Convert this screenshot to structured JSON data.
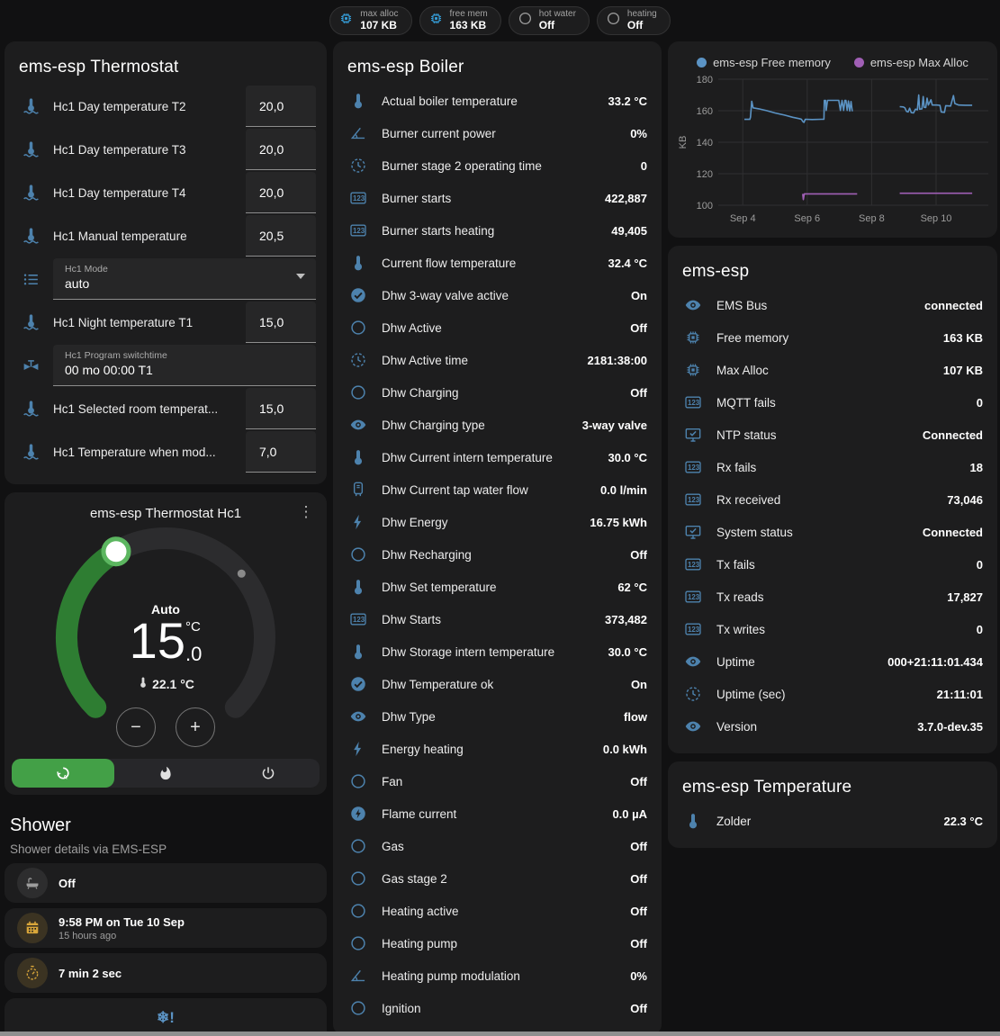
{
  "colors": {
    "accent_blue": "#4d82ad",
    "badge_blue": "#36a3e0",
    "amber": "#d9a63a",
    "gray_icon": "#9e9e9e",
    "green_active": "#43a047",
    "arc_green": "#2e7d32",
    "chart_blue": "#5b93c4",
    "chart_purple": "#a05fb5"
  },
  "topbar": {
    "badges": [
      {
        "label": "max alloc",
        "value": "107 KB",
        "icon": "chip",
        "icon_color": "#36a3e0"
      },
      {
        "label": "free mem",
        "value": "163 KB",
        "icon": "chip",
        "icon_color": "#36a3e0"
      },
      {
        "label": "hot water",
        "value": "Off",
        "icon": "circle",
        "icon_color": "#9e9e9e"
      },
      {
        "label": "heating",
        "value": "Off",
        "icon": "circle",
        "icon_color": "#9e9e9e"
      }
    ]
  },
  "thermostat_panel": {
    "title": "ems-esp Thermostat",
    "rows": [
      {
        "type": "number",
        "icon": "thermometer-water",
        "label": "Hc1 Day temperature T2",
        "value": "20,0"
      },
      {
        "type": "number",
        "icon": "thermometer-water",
        "label": "Hc1 Day temperature T3",
        "value": "20,0"
      },
      {
        "type": "number",
        "icon": "thermometer-water",
        "label": "Hc1 Day temperature T4",
        "value": "20,0"
      },
      {
        "type": "number",
        "icon": "thermometer-water",
        "label": "Hc1 Manual temperature",
        "value": "20,5"
      },
      {
        "type": "select",
        "icon": "list",
        "label": "Hc1 Mode",
        "value": "auto"
      },
      {
        "type": "number",
        "icon": "thermometer-water",
        "label": "Hc1 Night temperature T1",
        "value": "15,0"
      },
      {
        "type": "text",
        "icon": "valve",
        "label": "Hc1 Program switchtime",
        "value": "00 mo 00:00 T1"
      },
      {
        "type": "number",
        "icon": "thermometer-water",
        "label": "Hc1 Selected room temperat...",
        "value": "15,0"
      },
      {
        "type": "number",
        "icon": "thermometer-water",
        "label": "Hc1 Temperature when mod...",
        "value": "7,0"
      }
    ]
  },
  "dial_card": {
    "title": "ems-esp Thermostat Hc1",
    "mode_label": "Auto",
    "target_whole": "15",
    "target_decimal": ".0",
    "target_unit": "°C",
    "current_temperature": "22.1 °C",
    "minus_label": "−",
    "plus_label": "+",
    "menu_glyph": "⋮",
    "modes": [
      {
        "name": "auto",
        "icon": "thermostat-auto",
        "active": true
      },
      {
        "name": "heat",
        "icon": "fire",
        "active": false
      },
      {
        "name": "off",
        "icon": "power",
        "active": false
      }
    ]
  },
  "shower_section": {
    "title": "Shower",
    "subtitle": "Shower details via EMS-ESP",
    "items": [
      {
        "icon": "bathtub",
        "icon_color": "#9e9e9e",
        "circle_bg": "#2d2d2e",
        "primary": "Off",
        "secondary": ""
      },
      {
        "icon": "calendar",
        "icon_color": "#d9a63a",
        "circle_bg": "rgba(217,166,58,0.16)",
        "primary": "9:58 PM on Tue 10 Sep",
        "secondary": "15 hours ago"
      },
      {
        "icon": "timer",
        "icon_color": "#d9a63a",
        "circle_bg": "rgba(217,166,58,0.16)",
        "primary": "7 min 2 sec",
        "secondary": ""
      },
      {
        "icon": "snowflake-alert",
        "icon_color": "#5b93c4",
        "glyph": "❄!",
        "centered": true
      }
    ]
  },
  "boiler_panel": {
    "title": "ems-esp Boiler",
    "rows": [
      {
        "icon": "thermometer",
        "label": "Actual boiler temperature",
        "value": "33.2 °C"
      },
      {
        "icon": "angle",
        "label": "Burner current power",
        "value": "0%"
      },
      {
        "icon": "clock",
        "label": "Burner stage 2 operating time",
        "value": "0"
      },
      {
        "icon": "counter",
        "label": "Burner starts",
        "value": "422,887"
      },
      {
        "icon": "counter",
        "label": "Burner starts heating",
        "value": "49,405"
      },
      {
        "icon": "thermometer",
        "label": "Current flow temperature",
        "value": "32.4 °C"
      },
      {
        "icon": "check-circle",
        "label": "Dhw 3-way valve active",
        "value": "On"
      },
      {
        "icon": "circle",
        "label": "Dhw Active",
        "value": "Off"
      },
      {
        "icon": "clock",
        "label": "Dhw Active time",
        "value": "2181:38:00"
      },
      {
        "icon": "circle",
        "label": "Dhw Charging",
        "value": "Off"
      },
      {
        "icon": "eye",
        "label": "Dhw Charging type",
        "value": "3-way valve"
      },
      {
        "icon": "thermometer",
        "label": "Dhw Current intern temperature",
        "value": "30.0 °C"
      },
      {
        "icon": "water-heater",
        "label": "Dhw Current tap water flow",
        "value": "0.0 l/min"
      },
      {
        "icon": "lightning",
        "label": "Dhw Energy",
        "value": "16.75 kWh"
      },
      {
        "icon": "circle",
        "label": "Dhw Recharging",
        "value": "Off"
      },
      {
        "icon": "thermometer",
        "label": "Dhw Set temperature",
        "value": "62 °C"
      },
      {
        "icon": "counter",
        "label": "Dhw Starts",
        "value": "373,482"
      },
      {
        "icon": "thermometer",
        "label": "Dhw Storage intern temperature",
        "value": "30.0 °C"
      },
      {
        "icon": "check-circle",
        "label": "Dhw Temperature ok",
        "value": "On"
      },
      {
        "icon": "eye",
        "label": "Dhw Type",
        "value": "flow"
      },
      {
        "icon": "lightning",
        "label": "Energy heating",
        "value": "0.0 kWh"
      },
      {
        "icon": "circle",
        "label": "Fan",
        "value": "Off"
      },
      {
        "icon": "flash-circle",
        "label": "Flame current",
        "value": "0.0 µA"
      },
      {
        "icon": "circle",
        "label": "Gas",
        "value": "Off"
      },
      {
        "icon": "circle",
        "label": "Gas stage 2",
        "value": "Off"
      },
      {
        "icon": "circle",
        "label": "Heating active",
        "value": "Off"
      },
      {
        "icon": "circle",
        "label": "Heating pump",
        "value": "Off"
      },
      {
        "icon": "angle",
        "label": "Heating pump modulation",
        "value": "0%"
      },
      {
        "icon": "circle",
        "label": "Ignition",
        "value": "Off"
      }
    ]
  },
  "emsesp_panel": {
    "title": "ems-esp",
    "rows": [
      {
        "icon": "eye",
        "label": "EMS Bus",
        "value": "connected"
      },
      {
        "icon": "chip",
        "label": "Free memory",
        "value": "163 KB"
      },
      {
        "icon": "chip",
        "label": "Max Alloc",
        "value": "107 KB"
      },
      {
        "icon": "counter",
        "label": "MQTT fails",
        "value": "0"
      },
      {
        "icon": "monitor-check",
        "label": "NTP status",
        "value": "Connected"
      },
      {
        "icon": "counter",
        "label": "Rx fails",
        "value": "18"
      },
      {
        "icon": "counter",
        "label": "Rx received",
        "value": "73,046"
      },
      {
        "icon": "monitor-check",
        "label": "System status",
        "value": "Connected"
      },
      {
        "icon": "counter",
        "label": "Tx fails",
        "value": "0"
      },
      {
        "icon": "counter",
        "label": "Tx reads",
        "value": "17,827"
      },
      {
        "icon": "counter",
        "label": "Tx writes",
        "value": "0"
      },
      {
        "icon": "eye",
        "label": "Uptime",
        "value": "000+21:11:01.434"
      },
      {
        "icon": "clock",
        "label": "Uptime (sec)",
        "value": "21:11:01"
      },
      {
        "icon": "eye",
        "label": "Version",
        "value": "3.7.0-dev.35"
      }
    ]
  },
  "temperature_panel": {
    "title": "ems-esp Temperature",
    "rows": [
      {
        "icon": "thermometer",
        "label": "Zolder",
        "value": "22.3 °C"
      }
    ]
  },
  "chart_data": {
    "type": "line",
    "title": "",
    "ylabel": "KB",
    "yticks": [
      180,
      160,
      140,
      120,
      100
    ],
    "xticks": [
      {
        "label": "Sep 4",
        "day": 4
      },
      {
        "label": "Sep 6",
        "day": 6
      },
      {
        "label": "Sep 8",
        "day": 8
      },
      {
        "label": "Sep 10",
        "day": 10
      }
    ],
    "xlim": [
      3.24,
      11.62
    ],
    "ylim": [
      100,
      180
    ],
    "grid": true,
    "legend_position": "top",
    "series": [
      {
        "name": "ems-esp Free memory",
        "color": "#5b93c4",
        "unit": "KB",
        "segments": [
          [
            [
              4.05,
              154.5
            ],
            [
              4.22,
              154.5
            ],
            [
              4.24,
              156
            ],
            [
              4.28,
              166
            ],
            [
              4.32,
              161.8
            ],
            [
              4.5,
              161.2
            ],
            [
              4.75,
              160
            ],
            [
              5.0,
              158.6
            ],
            [
              5.3,
              157.2
            ],
            [
              5.55,
              155.8
            ],
            [
              5.75,
              155
            ],
            [
              5.82,
              154.6
            ],
            [
              5.86,
              153.2
            ],
            [
              5.9,
              152.6
            ],
            [
              5.94,
              154.6
            ],
            [
              6.15,
              154.4
            ],
            [
              6.45,
              154.6
            ],
            [
              6.52,
              154.6
            ],
            [
              6.53,
              166.6
            ],
            [
              6.57,
              166.6
            ],
            [
              6.59,
              160.2
            ],
            [
              6.63,
              166.6
            ],
            [
              6.98,
              166.6
            ],
            [
              7.03,
              160.2
            ],
            [
              7.08,
              166.6
            ],
            [
              7.13,
              160.2
            ],
            [
              7.17,
              166.6
            ],
            [
              7.2,
              166.6
            ],
            [
              7.24,
              160.2
            ],
            [
              7.28,
              166.2
            ],
            [
              7.32,
              159.8
            ],
            [
              7.36,
              165.8
            ],
            [
              7.4,
              159.6
            ]
          ],
          [
            [
              8.87,
              162.6
            ],
            [
              8.98,
              162.4
            ],
            [
              9.03,
              161.8
            ],
            [
              9.08,
              159.6
            ],
            [
              9.13,
              159.2
            ],
            [
              9.18,
              161.6
            ],
            [
              9.23,
              158.8
            ],
            [
              9.3,
              158.6
            ],
            [
              9.36,
              161
            ],
            [
              9.42,
              160.6
            ],
            [
              9.46,
              170
            ],
            [
              9.49,
              161
            ],
            [
              9.56,
              161.2
            ],
            [
              9.6,
              169
            ],
            [
              9.63,
              162.2
            ],
            [
              9.68,
              162
            ],
            [
              9.72,
              168
            ],
            [
              9.76,
              163.6
            ],
            [
              9.84,
              167
            ],
            [
              9.88,
              163.6
            ],
            [
              10.02,
              163.6
            ],
            [
              10.12,
              163.4
            ],
            [
              10.16,
              159.2
            ],
            [
              10.26,
              159
            ],
            [
              10.3,
              163.2
            ],
            [
              10.45,
              163
            ],
            [
              10.54,
              169.6
            ],
            [
              10.58,
              164.6
            ],
            [
              10.7,
              163.6
            ],
            [
              10.9,
              163.5
            ],
            [
              11.12,
              163.5
            ]
          ]
        ]
      },
      {
        "name": "ems-esp Max Alloc",
        "color": "#a05fb5",
        "unit": "KB",
        "segments": [
          [
            [
              5.86,
              107.2
            ],
            [
              5.88,
              103.6
            ],
            [
              5.91,
              107.2
            ],
            [
              7.55,
              107.2
            ]
          ],
          [
            [
              8.87,
              107.6
            ],
            [
              11.12,
              107.6
            ]
          ]
        ]
      }
    ]
  }
}
